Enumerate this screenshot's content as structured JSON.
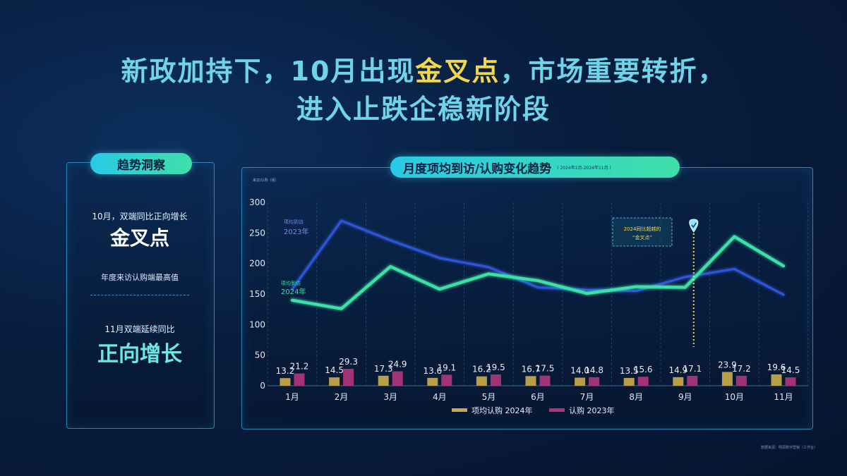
{
  "headline": {
    "line1_a": "新政加持下，10月出现",
    "line1_highlight": "金叉点",
    "line1_b": "，市场重要转折，",
    "line2": "进入止跌企稳新阶段"
  },
  "left_panel": {
    "pill": "趋势洞察",
    "text1": "10月，双端同比正向增长",
    "big1": "金叉点",
    "text2": "年度来访认购端最高值",
    "text3": "11月双端延续同比",
    "big2": "正向增长"
  },
  "chart_panel": {
    "pill": "月度项均到访/认购变化趋势",
    "pill_sub": "( 2024年1月-2024年11月 )",
    "source_note": "数据来源：明源数字营销（工作台）"
  },
  "colors": {
    "visit_2024": "#3ee0a6",
    "visit_2023": "#2f55d8",
    "bar_2024": "#c9a94a",
    "bar_2023": "#b0357a",
    "highlight": "#f5d84a"
  },
  "chart_data": {
    "type": "bar+line",
    "categories": [
      "1月",
      "2月",
      "3月",
      "4月",
      "5月",
      "6月",
      "7月",
      "8月",
      "9月",
      "10月",
      "11月"
    ],
    "yunit": "来访/认购（组）",
    "ylim": [
      0,
      300
    ],
    "yticks": [
      0,
      50,
      100,
      150,
      200,
      250,
      300
    ],
    "grid": "vertical-dashed",
    "lines": [
      {
        "name": "项均到访 2024年",
        "values": [
          140,
          126,
          195,
          158,
          183,
          172,
          151,
          162,
          161,
          244,
          196
        ]
      },
      {
        "name": "项均到访 2023年",
        "values": [
          158,
          270,
          238,
          209,
          194,
          161,
          157,
          155,
          178,
          191,
          149
        ]
      }
    ],
    "bars": [
      {
        "name": "项均认购 2024年",
        "values": [
          13.2,
          14.5,
          17.3,
          13.6,
          16.2,
          16.7,
          14.0,
          13.5,
          14.9,
          23.9,
          19.6
        ]
      },
      {
        "name": "认购 2023年",
        "values": [
          21.2,
          29.3,
          24.9,
          19.1,
          19.5,
          17.5,
          14.8,
          15.6,
          17.1,
          17.2,
          14.5
        ]
      }
    ],
    "annotation": {
      "text_line1": "2024同比超越的",
      "text_line2": "“金叉点”",
      "at_category": "9月"
    },
    "legend": [
      "项均认购 2024年",
      "认购 2023年"
    ]
  }
}
